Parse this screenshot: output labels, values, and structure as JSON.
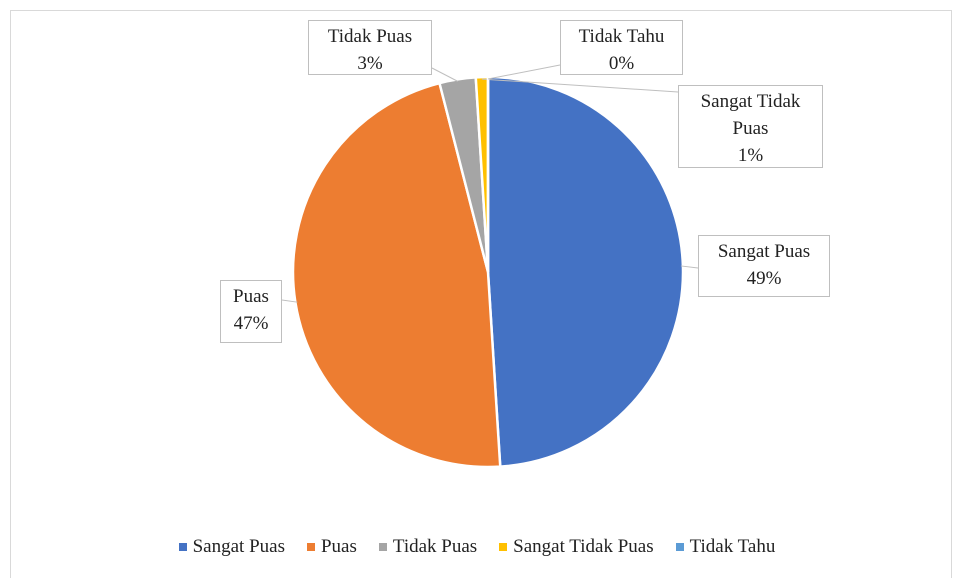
{
  "chart_data": {
    "type": "pie",
    "categories": [
      "Sangat Puas",
      "Puas",
      "Tidak Puas",
      "Sangat Tidak Puas",
      "Tidak Tahu"
    ],
    "values": [
      49,
      47,
      3,
      1,
      0
    ],
    "value_labels": [
      "49%",
      "47%",
      "3%",
      "1%",
      "0%"
    ],
    "colors": [
      "#4472c4",
      "#ed7d31",
      "#a5a5a5",
      "#ffc000",
      "#5b9bd5"
    ],
    "legend": "bottom"
  }
}
